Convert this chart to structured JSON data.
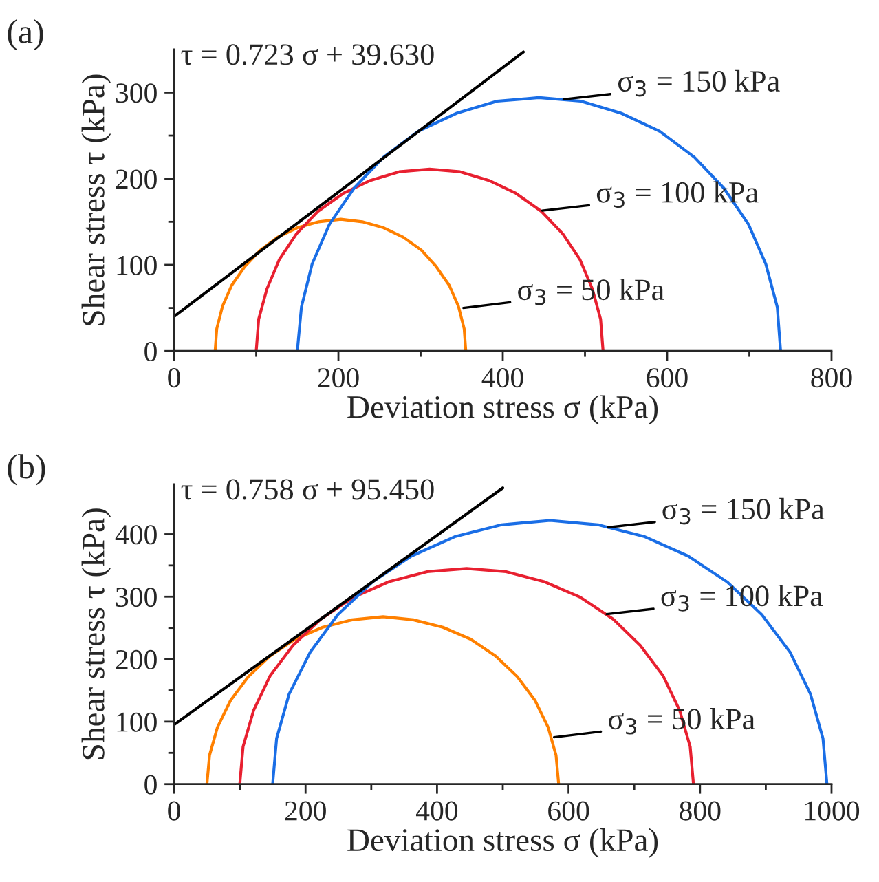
{
  "chart_data": [
    {
      "type": "line",
      "title": "(a)",
      "xlabel": "Deviation stress σ (kPa)",
      "ylabel": "Shear stress τ (kPa)",
      "xlim": [
        0,
        800
      ],
      "ylim": [
        0,
        350
      ],
      "xticks": [
        0,
        {
          "value": 100,
          "label": null
        },
        200,
        {
          "value": 300,
          "label": null
        },
        400,
        {
          "value": 500,
          "label": null
        },
        600,
        {
          "value": 700,
          "label": null
        },
        800
      ],
      "yticks": [
        0,
        {
          "value": 50,
          "label": null
        },
        100,
        {
          "value": 150,
          "label": null
        },
        200,
        {
          "value": 250,
          "label": null
        },
        300
      ],
      "annotations": [
        "τ = 0.723 σ + 39.630",
        {
          "text": "σ$_{3}$ = 150 kPa",
          "x": 474,
          "y": 292
        },
        {
          "text": "σ$_{3}$ = 100 kPa",
          "x": 448,
          "y": 163
        },
        {
          "text": "σ$_{3}$ = 50 kPa",
          "x": 352,
          "y": 50
        }
      ],
      "series": [
        {
          "color": "#ff8000",
          "x": [
            50,
            52,
            59,
            70,
            86,
            105,
            126,
            150,
            176,
            203,
            229,
            255,
            279,
            301,
            319,
            335,
            346,
            353,
            355
          ],
          "values": [
            0,
            26,
            52,
            76,
            98,
            117,
            132,
            143,
            150,
            153,
            150,
            143,
            132,
            117,
            98,
            76,
            52,
            26,
            0
          ]
        },
        {
          "color": "#e82030",
          "x": [
            100,
            103,
            113,
            128,
            149,
            175,
            206,
            239,
            274,
            311,
            348,
            383,
            416,
            447,
            473,
            494,
            509,
            519,
            522
          ],
          "values": [
            0,
            37,
            72,
            106,
            136,
            162,
            183,
            198,
            208,
            211,
            208,
            198,
            183,
            162,
            136,
            106,
            72,
            37,
            0
          ]
        },
        {
          "color": "#1a6ee6",
          "x": [
            150,
            155,
            168,
            189,
            219,
            255,
            297,
            344,
            393,
            444,
            495,
            544,
            591,
            633,
            669,
            699,
            720,
            734,
            738
          ],
          "values": [
            0,
            51,
            101,
            147,
            189,
            225,
            255,
            276,
            290,
            294,
            290,
            276,
            255,
            225,
            189,
            147,
            101,
            51,
            0
          ]
        },
        {
          "color": "#000000",
          "x": [
            0,
            425
          ],
          "values": [
            40,
            347
          ]
        }
      ]
    },
    {
      "type": "line",
      "title": "(b)",
      "xlabel": "Deviation stress σ (kPa)",
      "ylabel": "Shear stress τ (kPa)",
      "xlim": [
        0,
        1000
      ],
      "ylim": [
        0,
        480
      ],
      "xticks": [
        0,
        {
          "value": 100,
          "label": null
        },
        200,
        {
          "value": 300,
          "label": null
        },
        400,
        {
          "value": 500,
          "label": null
        },
        600,
        {
          "value": 700,
          "label": null
        },
        800,
        {
          "value": 900,
          "label": null
        },
        1000
      ],
      "yticks": [
        0,
        {
          "value": 50,
          "label": null
        },
        100,
        {
          "value": 150,
          "label": null
        },
        200,
        {
          "value": 250,
          "label": null
        },
        300,
        {
          "value": 350,
          "label": null
        },
        400
      ],
      "annotations": [
        "τ = 0.758 σ + 95.450",
        {
          "text": "σ$_{3}$ = 150 kPa",
          "x": 660,
          "y": 411
        },
        {
          "text": "σ$_{3}$ = 100 kPa",
          "x": 658,
          "y": 272
        },
        {
          "text": "σ$_{3}$ = 50 kPa",
          "x": 578,
          "y": 75
        }
      ],
      "series": [
        {
          "color": "#ff8000",
          "x": [
            50,
            54,
            66,
            86,
            113,
            146,
            184,
            226,
            271,
            318,
            364,
            409,
            451,
            489,
            522,
            549,
            569,
            581,
            585
          ],
          "values": [
            0,
            46,
            91,
            134,
            172,
            205,
            232,
            251,
            263,
            268,
            263,
            251,
            232,
            205,
            172,
            134,
            91,
            46,
            0
          ]
        },
        {
          "color": "#e82030",
          "x": [
            100,
            105,
            121,
            146,
            181,
            223,
            273,
            327,
            385,
            445,
            505,
            563,
            618,
            668,
            709,
            744,
            769,
            785,
            790
          ],
          "values": [
            0,
            60,
            118,
            173,
            222,
            264,
            299,
            324,
            340,
            345,
            340,
            324,
            299,
            264,
            222,
            173,
            118,
            60,
            0
          ]
        },
        {
          "color": "#1a6ee6",
          "x": [
            150,
            156,
            175,
            207,
            249,
            301,
            361,
            427,
            498,
            572,
            645,
            716,
            782,
            842,
            894,
            937,
            968,
            987,
            993
          ],
          "values": [
            0,
            73,
            144,
            211,
            271,
            323,
            365,
            396,
            415,
            422,
            415,
            396,
            365,
            323,
            271,
            211,
            144,
            73,
            0
          ]
        },
        {
          "color": "#000000",
          "x": [
            0,
            500
          ],
          "values": [
            95,
            474
          ]
        }
      ]
    }
  ]
}
